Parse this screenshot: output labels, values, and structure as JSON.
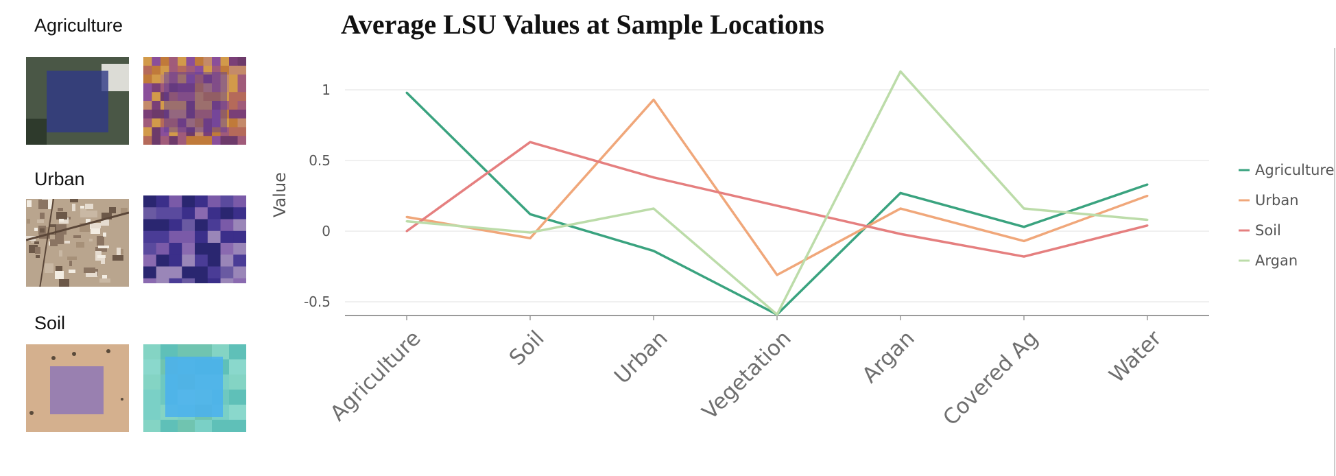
{
  "panels": [
    {
      "label": "Agriculture"
    },
    {
      "label": "Urban"
    },
    {
      "label": "Soil"
    }
  ],
  "chart_data": {
    "type": "line",
    "title": "Average LSU Values at Sample Locations",
    "xlabel": "",
    "ylabel": "Value",
    "ylim": [
      -0.6,
      1.15
    ],
    "yticks": [
      1,
      0.5,
      0,
      -0.5
    ],
    "ytick_labels": [
      "1",
      "0.5",
      "0",
      "-0.5"
    ],
    "categories": [
      "Agriculture",
      "Soil",
      "Urban",
      "Vegetation",
      "Argan",
      "Covered Ag",
      "Water"
    ],
    "grid": true,
    "legend_position": "right",
    "series": [
      {
        "name": "Agriculture",
        "color": "#3aa37f",
        "values": [
          0.98,
          0.12,
          -0.14,
          -0.59,
          0.27,
          0.03,
          0.33
        ]
      },
      {
        "name": "Urban",
        "color": "#f0a77a",
        "values": [
          0.1,
          -0.05,
          0.93,
          -0.31,
          0.16,
          -0.07,
          0.25
        ]
      },
      {
        "name": "Soil",
        "color": "#e57f7f",
        "values": [
          0.0,
          0.63,
          0.38,
          0.18,
          -0.02,
          -0.18,
          0.04
        ]
      },
      {
        "name": "Argan",
        "color": "#bcdca9",
        "values": [
          0.07,
          -0.01,
          0.16,
          -0.59,
          1.13,
          0.16,
          0.08
        ]
      }
    ]
  }
}
